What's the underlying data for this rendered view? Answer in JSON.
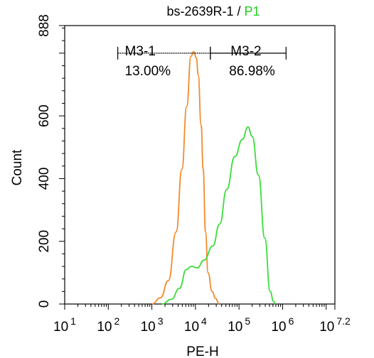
{
  "chart_data": {
    "type": "histogram",
    "title": "bs-2639R-1 / ",
    "title_highlight": "P1",
    "xlabel": "PE-H",
    "ylabel": "Count",
    "x_scale": "log",
    "xlim": [
      10,
      15848932
    ],
    "ylim": [
      0,
      888
    ],
    "y_ticks": [
      0,
      200,
      400,
      600,
      888
    ],
    "x_ticks": [
      {
        "base": "10",
        "exp": "1",
        "value": 10
      },
      {
        "base": "10",
        "exp": "2",
        "value": 100
      },
      {
        "base": "10",
        "exp": "3",
        "value": 1000
      },
      {
        "base": "10",
        "exp": "4",
        "value": 10000
      },
      {
        "base": "10",
        "exp": "5",
        "value": 100000
      },
      {
        "base": "10",
        "exp": "6",
        "value": 1000000
      },
      {
        "base": "10",
        "exp": "7.2",
        "value": 15848932
      }
    ],
    "colors": {
      "orange": "#f28a2e",
      "green": "#3ddc3d",
      "title_highlight": "#22cc22"
    },
    "series": [
      {
        "color": "#f28a2e",
        "points": [
          [
            1000,
            0
          ],
          [
            1580,
            20
          ],
          [
            2400,
            75
          ],
          [
            3600,
            230
          ],
          [
            4900,
            430
          ],
          [
            6300,
            630
          ],
          [
            7900,
            790
          ],
          [
            9100,
            805
          ],
          [
            10500,
            785
          ],
          [
            11600,
            730
          ],
          [
            13500,
            570
          ],
          [
            15100,
            430
          ],
          [
            17000,
            230
          ],
          [
            19500,
            100
          ],
          [
            24000,
            40
          ],
          [
            29000,
            18
          ],
          [
            35000,
            0
          ]
        ]
      },
      {
        "color": "#3ddc3d",
        "points": [
          [
            1700,
            0
          ],
          [
            2800,
            15
          ],
          [
            4300,
            50
          ],
          [
            6200,
            110
          ],
          [
            8100,
            120
          ],
          [
            11000,
            115
          ],
          [
            15800,
            140
          ],
          [
            25000,
            185
          ],
          [
            36000,
            255
          ],
          [
            52000,
            365
          ],
          [
            80000,
            470
          ],
          [
            120000,
            525
          ],
          [
            160000,
            565
          ],
          [
            200000,
            535
          ],
          [
            280000,
            410
          ],
          [
            390000,
            210
          ],
          [
            520000,
            40
          ],
          [
            620000,
            8
          ],
          [
            700000,
            0
          ]
        ]
      }
    ],
    "gates": [
      {
        "name": "M3-1",
        "percent": "13.00%",
        "x_start": 165,
        "x_end": 22000,
        "y": 800
      },
      {
        "name": "M3-2",
        "percent": "86.98%",
        "x_start": 22000,
        "x_end": 1200000,
        "y": 800
      }
    ]
  }
}
